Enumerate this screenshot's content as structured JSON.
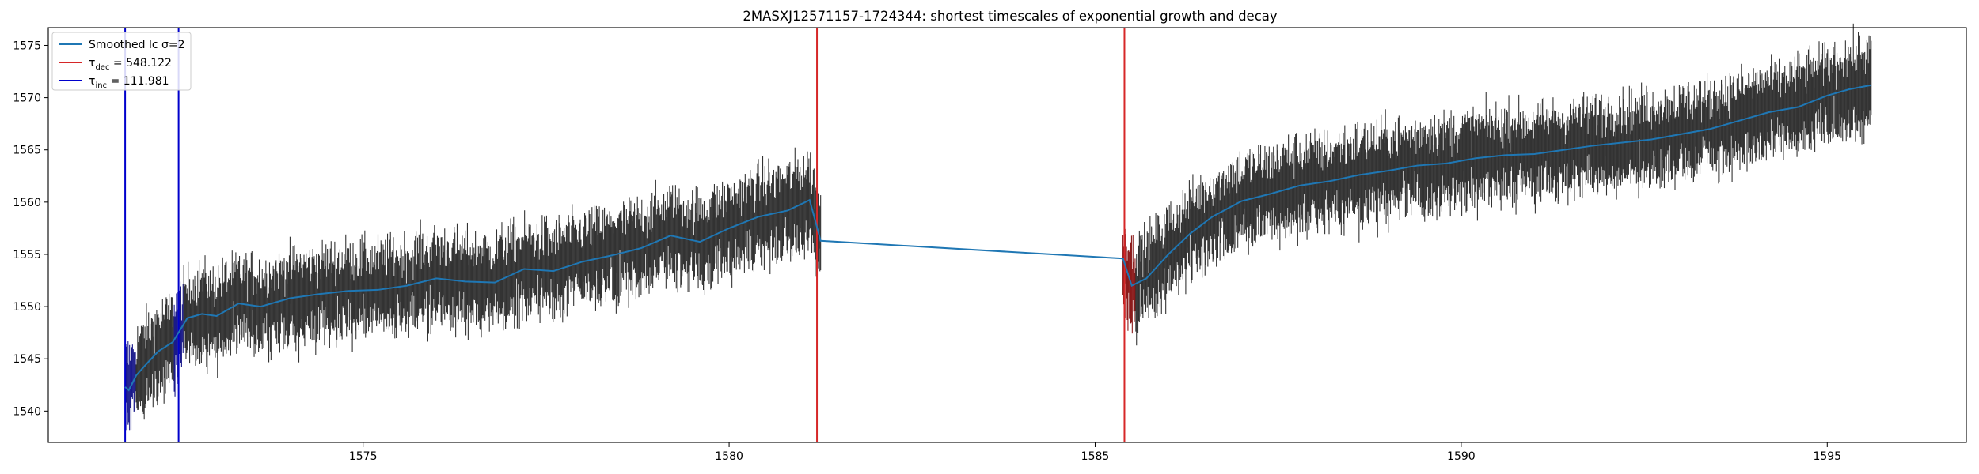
{
  "chart_data": {
    "type": "line",
    "title": "2MASXJ12571157-1724344: shortest timescales of exponential growth and decay",
    "xlabel": "",
    "ylabel": "",
    "xlim": [
      1570.7,
      1596.9
    ],
    "ylim": [
      1537.0,
      1576.7
    ],
    "x_ticks": [
      1575,
      1580,
      1585,
      1590,
      1595
    ],
    "y_ticks": [
      1540,
      1545,
      1550,
      1555,
      1560,
      1565,
      1570,
      1575
    ],
    "grid": false,
    "legend_position": "top-left",
    "legend": [
      {
        "label": "Smoothed lc σ=2",
        "color": "#1f77b4"
      },
      {
        "label_main": "τ",
        "label_sub": "dec",
        "label_rest": " = 548.122",
        "color": "#d62728"
      },
      {
        "label_main": "τ",
        "label_sub": "inc",
        "label_rest": " = 111.981",
        "color": "#0000cc"
      }
    ],
    "colors": {
      "smoothed": "#1f77b4",
      "errorbars": "#333333",
      "decay_lines": "#d62728",
      "growth_lines": "#0000cc",
      "decay_highlight": "#8b1a1a",
      "growth_highlight": "#1a1a8b"
    },
    "vertical_lines": [
      {
        "x": 1571.75,
        "kind": "growth"
      },
      {
        "x": 1572.48,
        "kind": "growth"
      },
      {
        "x": 1581.2,
        "kind": "decay"
      },
      {
        "x": 1585.4,
        "kind": "decay"
      }
    ],
    "data_segments": [
      {
        "x_start": 1571.75,
        "x_end": 1581.25,
        "y_start": 1542.5,
        "y_end": 1560.2
      },
      {
        "x_start": 1585.38,
        "x_end": 1595.6,
        "y_start": 1552.0,
        "y_end": 1571.2
      }
    ],
    "smoothed_series": {
      "name": "Smoothed lc σ=2",
      "x": [
        1571.75,
        1571.8,
        1571.9,
        1572.0,
        1572.2,
        1572.4,
        1572.6,
        1572.8,
        1573.0,
        1573.3,
        1573.6,
        1574.0,
        1574.4,
        1574.8,
        1575.2,
        1575.6,
        1576.0,
        1576.4,
        1576.8,
        1577.2,
        1577.6,
        1578.0,
        1578.4,
        1578.8,
        1579.2,
        1579.6,
        1580.0,
        1580.4,
        1580.8,
        1581.1,
        1581.25,
        1585.38,
        1585.5,
        1585.7,
        1586.0,
        1586.3,
        1586.6,
        1587.0,
        1587.4,
        1587.8,
        1588.2,
        1588.6,
        1589.0,
        1589.4,
        1589.8,
        1590.2,
        1590.6,
        1591.0,
        1591.4,
        1591.8,
        1592.2,
        1592.6,
        1593.0,
        1593.4,
        1593.8,
        1594.2,
        1594.6,
        1595.0,
        1595.3,
        1595.6
      ],
      "y": [
        1542.3,
        1542.0,
        1543.4,
        1544.2,
        1545.7,
        1546.6,
        1548.9,
        1549.3,
        1549.1,
        1550.3,
        1550.0,
        1550.8,
        1551.2,
        1551.5,
        1551.6,
        1552.0,
        1552.7,
        1552.4,
        1552.3,
        1553.6,
        1553.4,
        1554.3,
        1554.9,
        1555.6,
        1556.8,
        1556.2,
        1557.5,
        1558.6,
        1559.2,
        1560.2,
        1556.3,
        1554.6,
        1552.0,
        1552.7,
        1555.0,
        1557.0,
        1558.6,
        1560.1,
        1560.8,
        1561.6,
        1562.0,
        1562.6,
        1563.0,
        1563.5,
        1563.7,
        1564.2,
        1564.5,
        1564.6,
        1565.0,
        1565.4,
        1565.7,
        1566.0,
        1566.5,
        1567.0,
        1567.8,
        1568.6,
        1569.1,
        1570.2,
        1570.8,
        1571.2
      ]
    }
  }
}
